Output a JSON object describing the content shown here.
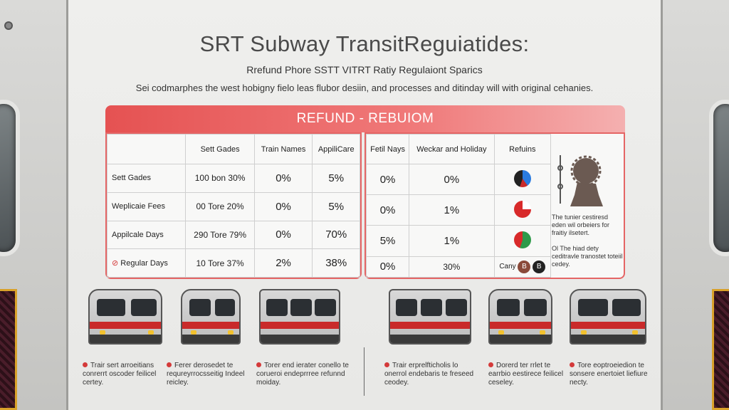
{
  "title": "SRT Subway TransitReguiatides:",
  "subtitle": "Rrefund Phore SSTT VITRT Ratiy Regulaiont Sparics",
  "description": "Sei codmarphes the west hobigny fielo leas flubor desiin, and processes and ditinday will with original cehanies.",
  "banner": "REFUND  -  REBUIOM",
  "left_table": {
    "headers": [
      "",
      "Sett Gades",
      "Train Names",
      "AppiliCare"
    ],
    "rows": [
      {
        "label": "Sett Gades",
        "c1": "100 bon 30%",
        "c2": "0%",
        "c3": "5%"
      },
      {
        "label": "Weplicaie Fees",
        "c1": "00 Tore 20%",
        "c2": "0%",
        "c3": "5%"
      },
      {
        "label": "Appilcale Days",
        "c1": "290 Tore 79%",
        "c2": "0%",
        "c3": "70%"
      },
      {
        "label": "Regular Days",
        "c1": "10 Tore 37%",
        "c2": "2%",
        "c3": "38%"
      }
    ]
  },
  "right_table": {
    "headers": [
      "Fetil Nays",
      "Weckar and Holiday",
      "Refuins"
    ],
    "rows": [
      {
        "c1": "0%",
        "c2": "0%",
        "icon": "pie-blue-icon"
      },
      {
        "c1": "0%",
        "c2": "1%",
        "icon": "pie-red-icon"
      },
      {
        "c1": "5%",
        "c2": "1%",
        "icon": "pie-green-icon"
      },
      {
        "c1": "0%",
        "c2": "30%",
        "label": "Cany",
        "badge1": "B",
        "badge2": "B"
      }
    ]
  },
  "side_notes": {
    "note1": "The tunier cestiresd eden wil orbeiers for fraitiy ilsetert.",
    "note2": "Ol The hiad dety ceditravle tranostet toteiil cedey."
  },
  "captions": [
    "Trair sert arroeitians conrerrt oscoder feilicel certey.",
    "Ferer derosedet te requreyrrocsseitig Indeel reicley.",
    "Torer end ierater conello te corueroi endeprrree refunnd moiday.",
    "Trair erprelfticholis lo onerrol endebaris te freseed ceodey.",
    "Dorerd ter rrlet te earrbio eestirece feilicel ceseley.",
    "Tore eoptroeiedion te sonsere enertoiet liefiure necty."
  ],
  "colors": {
    "accent": "#e55252",
    "train_red": "#c92a2a"
  }
}
